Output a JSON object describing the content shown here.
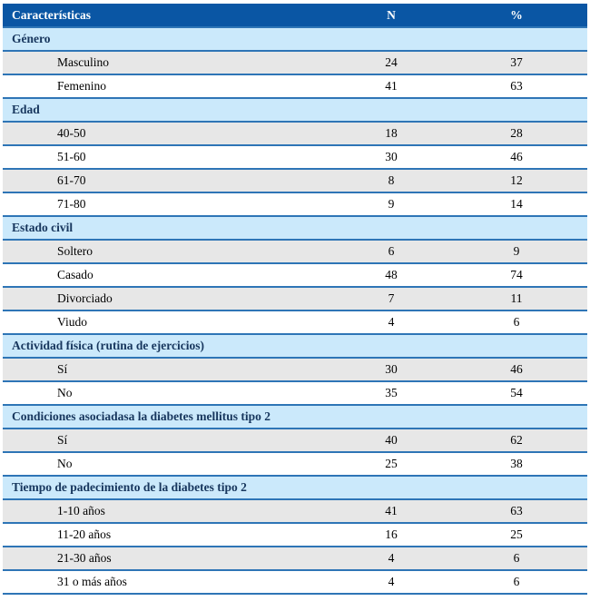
{
  "colors": {
    "header_bg": "#0a56a4",
    "header_text": "#ffffff",
    "section_bg": "#cbe9fb",
    "section_text": "#17365d",
    "row_alt_bg": "#e7e7e7",
    "row_bg": "#ffffff",
    "border": "#2e75b6",
    "text": "#000000"
  },
  "table": {
    "columns": [
      "Características",
      "N",
      "%"
    ],
    "sections": [
      {
        "label": "Género",
        "rows": [
          {
            "label": "Masculino",
            "n": "24",
            "pct": "37"
          },
          {
            "label": "Femenino",
            "n": "41",
            "pct": "63"
          }
        ]
      },
      {
        "label": "Edad",
        "rows": [
          {
            "label": "40-50",
            "n": "18",
            "pct": "28"
          },
          {
            "label": "51-60",
            "n": "30",
            "pct": "46"
          },
          {
            "label": "61-70",
            "n": "8",
            "pct": "12"
          },
          {
            "label": "71-80",
            "n": "9",
            "pct": "14"
          }
        ]
      },
      {
        "label": "Estado civil",
        "rows": [
          {
            "label": "Soltero",
            "n": "6",
            "pct": "9"
          },
          {
            "label": "Casado",
            "n": "48",
            "pct": "74"
          },
          {
            "label": "Divorciado",
            "n": "7",
            "pct": "11"
          },
          {
            "label": "Viudo",
            "n": "4",
            "pct": "6"
          }
        ]
      },
      {
        "label": "Actividad física (rutina de ejercicios)",
        "rows": [
          {
            "label": "Sí",
            "n": "30",
            "pct": "46"
          },
          {
            "label": "No",
            "n": "35",
            "pct": "54"
          }
        ]
      },
      {
        "label": "Condiciones asociadasa la diabetes mellitus tipo 2",
        "rows": [
          {
            "label": "Sí",
            "n": "40",
            "pct": "62"
          },
          {
            "label": "No",
            "n": "25",
            "pct": "38"
          }
        ]
      },
      {
        "label": "Tiempo de padecimiento de la diabetes tipo 2",
        "rows": [
          {
            "label": "1-10 años",
            "n": "41",
            "pct": "63"
          },
          {
            "label": "11-20 años",
            "n": "16",
            "pct": "25"
          },
          {
            "label": "21-30 años",
            "n": "4",
            "pct": "6"
          },
          {
            "label": "31 o más años",
            "n": "4",
            "pct": "6"
          }
        ]
      }
    ]
  }
}
